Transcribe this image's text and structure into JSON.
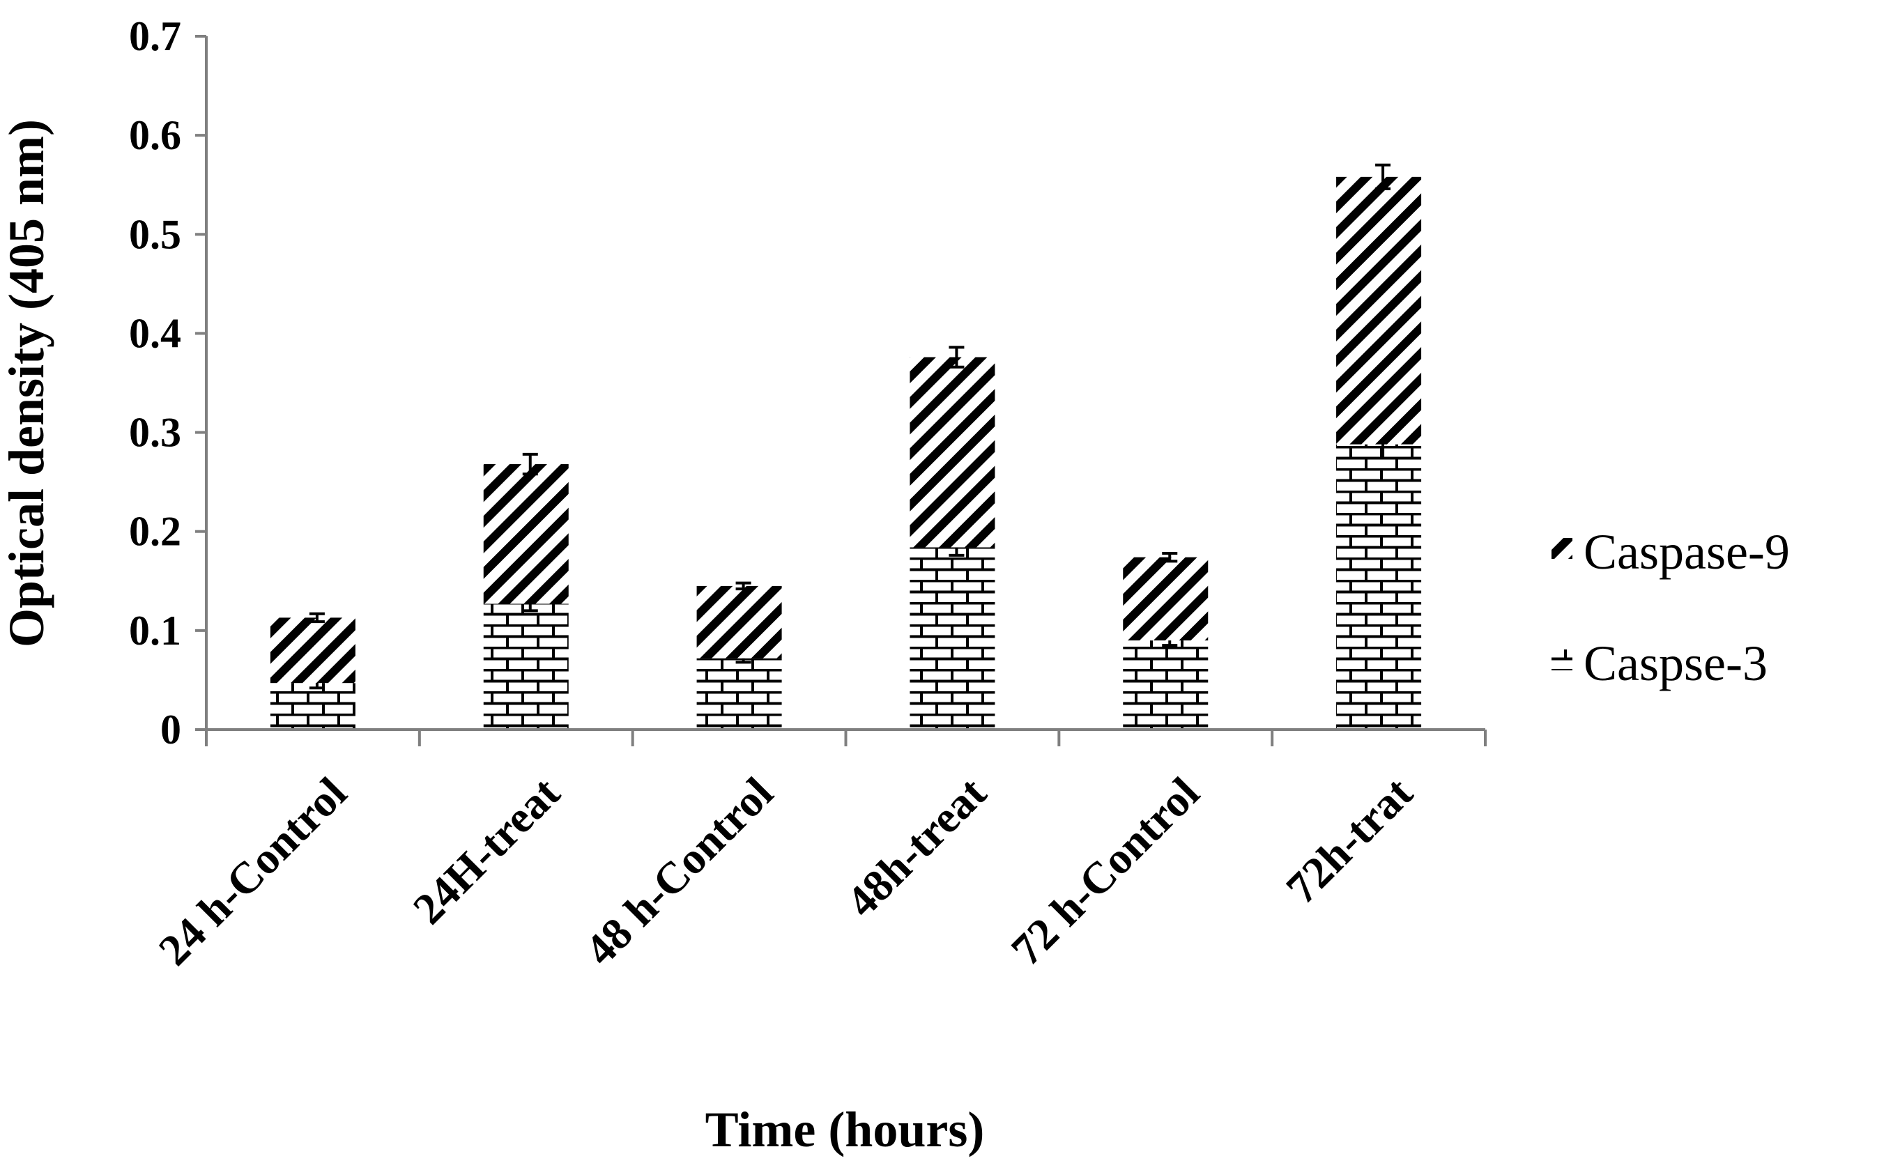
{
  "chart_data": {
    "type": "bar",
    "stacked": true,
    "categories": [
      "24 h-Control",
      "24H-treat",
      "48 h-Control",
      "48h-treat",
      "72 h-Control",
      "72h-trat"
    ],
    "series": [
      {
        "name": "Caspse-3",
        "values": [
          0.047,
          0.127,
          0.072,
          0.184,
          0.09,
          0.288
        ],
        "errors": [
          0.005,
          0.007,
          0.004,
          0.008,
          0.005,
          0.014
        ],
        "pattern": "brick"
      },
      {
        "name": "Caspase-9",
        "values": [
          0.066,
          0.141,
          0.073,
          0.192,
          0.084,
          0.27
        ],
        "errors": [
          0.004,
          0.01,
          0.003,
          0.01,
          0.004,
          0.012
        ],
        "pattern": "diagonal"
      }
    ],
    "title": "",
    "xlabel": "Time (hours)",
    "ylabel": "Optical density (405 nm)",
    "ylim": [
      0,
      0.7
    ],
    "yticks": [
      "0",
      "0.1",
      "0.2",
      "0.3",
      "0.4",
      "0.5",
      "0.6",
      "0.7"
    ],
    "grid": false,
    "legend_position": "right"
  }
}
